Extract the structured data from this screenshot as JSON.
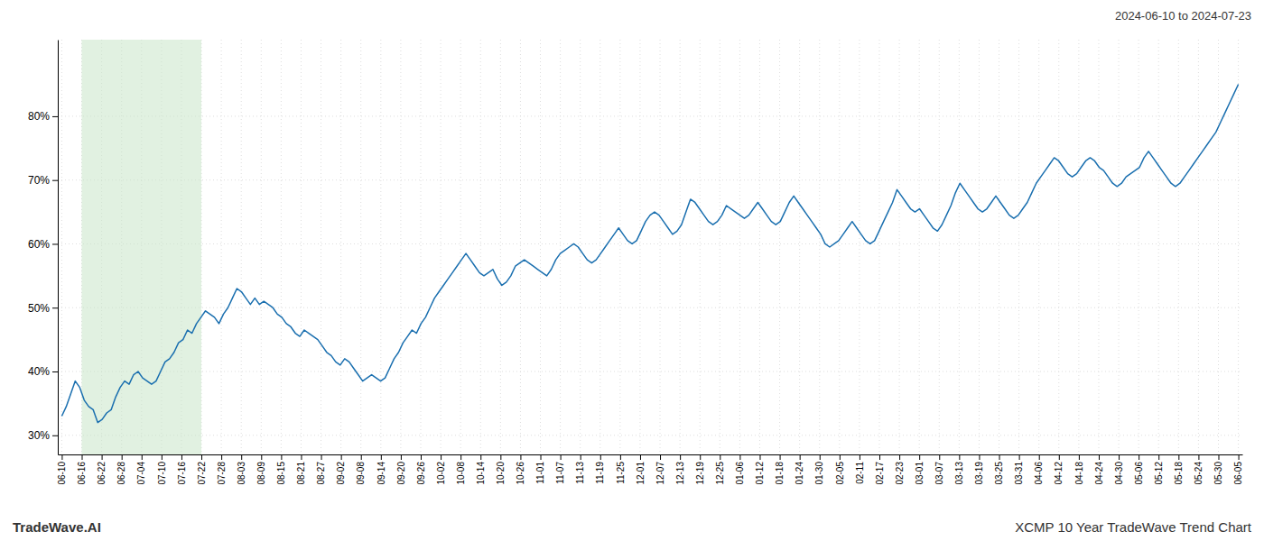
{
  "chart_data": {
    "type": "line",
    "title": "2024-06-10 to 2024-07-23",
    "annotations": [
      "TradeWave.AI",
      "XCMP 10 Year TradeWave Trend Chart"
    ],
    "color": "#1a6faf",
    "grid": true,
    "spans": [
      {
        "start": 1,
        "end": 7,
        "color": "#c8e6c9"
      }
    ],
    "xlim": [
      -0.2,
      59.2
    ],
    "xticks": [
      {
        "value": 0,
        "label": "06-10"
      },
      {
        "value": 1,
        "label": "06-16"
      },
      {
        "value": 2,
        "label": "06-22"
      },
      {
        "value": 3,
        "label": "06-28"
      },
      {
        "value": 4,
        "label": "07-04"
      },
      {
        "value": 5,
        "label": "07-10"
      },
      {
        "value": 6,
        "label": "07-16"
      },
      {
        "value": 7,
        "label": "07-22"
      },
      {
        "value": 8,
        "label": "07-28"
      },
      {
        "value": 9,
        "label": "08-03"
      },
      {
        "value": 10,
        "label": "08-09"
      },
      {
        "value": 11,
        "label": "08-15"
      },
      {
        "value": 12,
        "label": "08-21"
      },
      {
        "value": 13,
        "label": "08-27"
      },
      {
        "value": 14,
        "label": "09-02"
      },
      {
        "value": 15,
        "label": "09-08"
      },
      {
        "value": 16,
        "label": "09-14"
      },
      {
        "value": 17,
        "label": "09-20"
      },
      {
        "value": 18,
        "label": "09-26"
      },
      {
        "value": 19,
        "label": "10-02"
      },
      {
        "value": 20,
        "label": "10-08"
      },
      {
        "value": 21,
        "label": "10-14"
      },
      {
        "value": 22,
        "label": "10-20"
      },
      {
        "value": 23,
        "label": "10-26"
      },
      {
        "value": 24,
        "label": "11-01"
      },
      {
        "value": 25,
        "label": "11-07"
      },
      {
        "value": 26,
        "label": "11-13"
      },
      {
        "value": 27,
        "label": "11-19"
      },
      {
        "value": 28,
        "label": "11-25"
      },
      {
        "value": 29,
        "label": "12-01"
      },
      {
        "value": 30,
        "label": "12-07"
      },
      {
        "value": 31,
        "label": "12-13"
      },
      {
        "value": 32,
        "label": "12-19"
      },
      {
        "value": 33,
        "label": "12-25"
      },
      {
        "value": 34,
        "label": "01-06"
      },
      {
        "value": 35,
        "label": "01-12"
      },
      {
        "value": 36,
        "label": "01-18"
      },
      {
        "value": 37,
        "label": "01-24"
      },
      {
        "value": 38,
        "label": "01-30"
      },
      {
        "value": 39,
        "label": "02-05"
      },
      {
        "value": 40,
        "label": "02-11"
      },
      {
        "value": 41,
        "label": "02-17"
      },
      {
        "value": 42,
        "label": "02-23"
      },
      {
        "value": 43,
        "label": "03-01"
      },
      {
        "value": 44,
        "label": "03-07"
      },
      {
        "value": 45,
        "label": "03-13"
      },
      {
        "value": 46,
        "label": "03-19"
      },
      {
        "value": 47,
        "label": "03-25"
      },
      {
        "value": 48,
        "label": "03-31"
      },
      {
        "value": 49,
        "label": "04-06"
      },
      {
        "value": 50,
        "label": "04-12"
      },
      {
        "value": 51,
        "label": "04-18"
      },
      {
        "value": 52,
        "label": "04-24"
      },
      {
        "value": 53,
        "label": "04-30"
      },
      {
        "value": 54,
        "label": "05-06"
      },
      {
        "value": 55,
        "label": "05-12"
      },
      {
        "value": 56,
        "label": "05-18"
      },
      {
        "value": 57,
        "label": "05-24"
      },
      {
        "value": 58,
        "label": "05-30"
      },
      {
        "value": 59,
        "label": "06-05"
      }
    ],
    "ylim": [
      27,
      92
    ],
    "yticks": [
      {
        "value": 30,
        "label": "30%"
      },
      {
        "value": 40,
        "label": "40%"
      },
      {
        "value": 50,
        "label": "50%"
      },
      {
        "value": 60,
        "label": "60%"
      },
      {
        "value": 70,
        "label": "70%"
      },
      {
        "value": 80,
        "label": "80%"
      }
    ],
    "values": [
      33.0,
      34.5,
      36.5,
      38.5,
      37.5,
      35.5,
      34.5,
      34.0,
      32.0,
      32.5,
      33.5,
      34.0,
      36.0,
      37.5,
      38.5,
      38.0,
      39.5,
      40.0,
      39.0,
      38.5,
      38.0,
      38.5,
      40.0,
      41.5,
      42.0,
      43.0,
      44.5,
      45.0,
      46.5,
      46.0,
      47.5,
      48.5,
      49.5,
      49.0,
      48.5,
      47.5,
      49.0,
      50.0,
      51.5,
      53.0,
      52.5,
      51.5,
      50.5,
      51.5,
      50.5,
      51.0,
      50.5,
      50.0,
      49.0,
      48.5,
      47.5,
      47.0,
      46.0,
      45.5,
      46.5,
      46.0,
      45.5,
      45.0,
      44.0,
      43.0,
      42.5,
      41.5,
      41.0,
      42.0,
      41.5,
      40.5,
      39.5,
      38.5,
      39.0,
      39.5,
      39.0,
      38.5,
      39.0,
      40.5,
      42.0,
      43.0,
      44.5,
      45.5,
      46.5,
      46.0,
      47.5,
      48.5,
      50.0,
      51.5,
      52.5,
      53.5,
      54.5,
      55.5,
      56.5,
      57.5,
      58.5,
      57.5,
      56.5,
      55.5,
      55.0,
      55.5,
      56.0,
      54.5,
      53.5,
      54.0,
      55.0,
      56.5,
      57.0,
      57.5,
      57.0,
      56.5,
      56.0,
      55.5,
      55.0,
      56.0,
      57.5,
      58.5,
      59.0,
      59.5,
      60.0,
      59.5,
      58.5,
      57.5,
      57.0,
      57.5,
      58.5,
      59.5,
      60.5,
      61.5,
      62.5,
      61.5,
      60.5,
      60.0,
      60.5,
      62.0,
      63.5,
      64.5,
      65.0,
      64.5,
      63.5,
      62.5,
      61.5,
      62.0,
      63.0,
      65.0,
      67.0,
      66.5,
      65.5,
      64.5,
      63.5,
      63.0,
      63.5,
      64.5,
      66.0,
      65.5,
      65.0,
      64.5,
      64.0,
      64.5,
      65.5,
      66.5,
      65.5,
      64.5,
      63.5,
      63.0,
      63.5,
      65.0,
      66.5,
      67.5,
      66.5,
      65.5,
      64.5,
      63.5,
      62.5,
      61.5,
      60.0,
      59.5,
      60.0,
      60.5,
      61.5,
      62.5,
      63.5,
      62.5,
      61.5,
      60.5,
      60.0,
      60.5,
      62.0,
      63.5,
      65.0,
      66.5,
      68.5,
      67.5,
      66.5,
      65.5,
      65.0,
      65.5,
      64.5,
      63.5,
      62.5,
      62.0,
      63.0,
      64.5,
      66.0,
      68.0,
      69.5,
      68.5,
      67.5,
      66.5,
      65.5,
      65.0,
      65.5,
      66.5,
      67.5,
      66.5,
      65.5,
      64.5,
      64.0,
      64.5,
      65.5,
      66.5,
      68.0,
      69.5,
      70.5,
      71.5,
      72.5,
      73.5,
      73.0,
      72.0,
      71.0,
      70.5,
      71.0,
      72.0,
      73.0,
      73.5,
      73.0,
      72.0,
      71.5,
      70.5,
      69.5,
      69.0,
      69.5,
      70.5,
      71.0,
      71.5,
      72.0,
      73.5,
      74.5,
      73.5,
      72.5,
      71.5,
      70.5,
      69.5,
      69.0,
      69.5,
      70.5,
      71.5,
      72.5,
      73.5,
      74.5,
      75.5,
      76.5,
      77.5,
      79.0,
      80.5,
      82.0,
      83.5,
      85.0
    ]
  }
}
